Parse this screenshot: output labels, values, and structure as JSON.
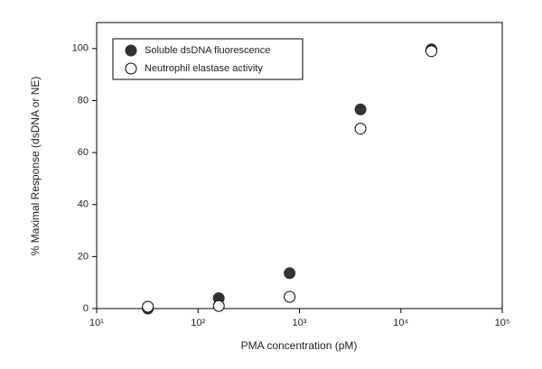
{
  "chart_data": {
    "type": "scatter",
    "xlabel": "PMA concentration (pM)",
    "ylabel": "% Maximal Response (dsDNA or NE)",
    "xscale": "log",
    "xlim": [
      10,
      100000
    ],
    "xticks": [
      {
        "value": 10,
        "label": "10¹"
      },
      {
        "value": 100,
        "label": "10²"
      },
      {
        "value": 1000,
        "label": "10³"
      },
      {
        "value": 10000,
        "label": "10⁴"
      },
      {
        "value": 100000,
        "label": "10⁵"
      }
    ],
    "ylim": [
      0,
      110
    ],
    "yticks": [
      0,
      20,
      40,
      60,
      80,
      100
    ],
    "legend": "upper left",
    "series": [
      {
        "name": "Soluble dsDNA fluorescence",
        "color": "#333333",
        "filled": true,
        "x": [
          32,
          160,
          800,
          4000,
          20000
        ],
        "values": [
          0,
          4,
          13.6,
          76.6,
          99.7
        ]
      },
      {
        "name": "Neutrophil elastase activity",
        "color": "#000000",
        "filled": false,
        "x": [
          32,
          160,
          800,
          4000,
          20000
        ],
        "values": [
          0.7,
          1,
          4.5,
          69.2,
          99
        ]
      }
    ]
  }
}
